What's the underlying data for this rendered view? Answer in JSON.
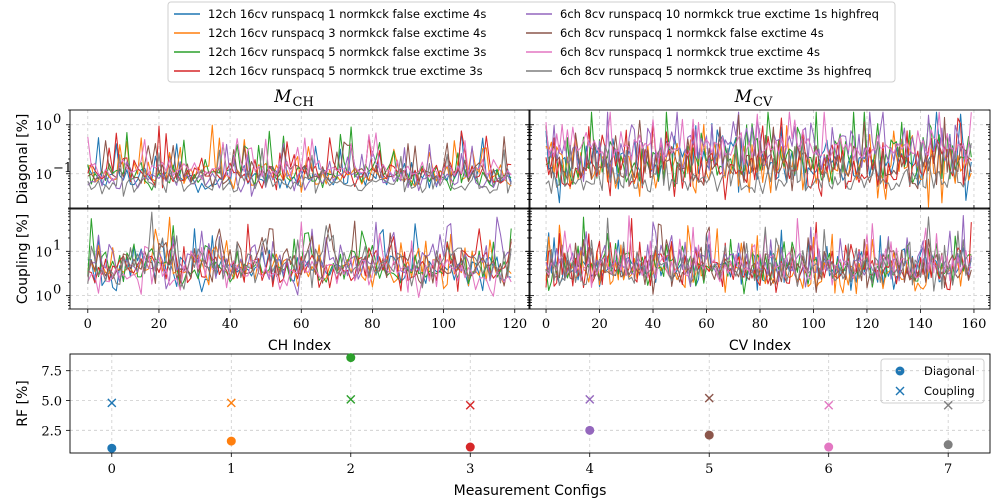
{
  "legend": {
    "entries": [
      {
        "label": "12ch 16cv runspacq 1 normkck false exctime 4s",
        "color": "#1f77b4"
      },
      {
        "label": "12ch 16cv runspacq 3 normkck false exctime 4s",
        "color": "#ff7f0e"
      },
      {
        "label": "12ch 16cv runspacq 5 normkck false exctime 3s",
        "color": "#2ca02c"
      },
      {
        "label": "12ch 16cv runspacq 5 normkck true exctime 3s",
        "color": "#d62728"
      },
      {
        "label": "6ch 8cv runspacq 10 normkck true exctime 1s highfreq",
        "color": "#9467bd"
      },
      {
        "label": "6ch 8cv runspacq 1 normkck false exctime 4s",
        "color": "#8c564b"
      },
      {
        "label": "6ch 8cv runspacq 1 normkck true exctime 4s",
        "color": "#e377c2"
      },
      {
        "label": "6ch 8cv runspacq 5 normkck true exctime 3s highfreq",
        "color": "#7f7f7f"
      }
    ]
  },
  "chart_data": [
    {
      "id": "mch",
      "type": "line",
      "title_main": "M",
      "title_sub": "CH",
      "xlabel": "CH Index",
      "x_ticks": [
        0,
        20,
        40,
        60,
        80,
        100,
        120
      ],
      "x_range": [
        0,
        119
      ],
      "xlim": [
        -5,
        124
      ],
      "panels": [
        {
          "ylabel": "Diagonal [%]",
          "yscale": "log",
          "ylim": [
            0.02,
            2.0
          ],
          "y_ticks": [
            {
              "v": 0.1,
              "t": "10",
              "e": "−1"
            },
            {
              "v": 1,
              "t": "10",
              "e": "0"
            }
          ],
          "series_levels": [
            0.08,
            0.1,
            0.1,
            0.1,
            0.08,
            0.1,
            0.12,
            0.06
          ],
          "series_spread": [
            0.6,
            0.6,
            0.6,
            0.6,
            0.5,
            0.5,
            0.4,
            0.5
          ]
        },
        {
          "ylabel": "Coupling [%]",
          "yscale": "log",
          "ylim": [
            0.5,
            90
          ],
          "y_ticks": [
            {
              "v": 1,
              "t": "10",
              "e": "0"
            },
            {
              "v": 10,
              "t": "10",
              "e": "1"
            }
          ],
          "series_levels": [
            4,
            4,
            4.5,
            4,
            5,
            5,
            3,
            5
          ],
          "series_spread": [
            0.9,
            0.9,
            0.9,
            0.9,
            1.0,
            1.0,
            1.0,
            1.1
          ]
        }
      ]
    },
    {
      "id": "mcv",
      "type": "line",
      "title_main": "M",
      "title_sub": "CV",
      "xlabel": "CV Index",
      "x_ticks": [
        0,
        20,
        40,
        60,
        80,
        100,
        120,
        140,
        160
      ],
      "x_range": [
        0,
        159
      ],
      "xlim": [
        -6,
        166
      ],
      "panels": [
        {
          "ylabel": "",
          "yscale": "log",
          "ylim": [
            0.02,
            2.0
          ],
          "y_ticks": [],
          "series_levels": [
            0.15,
            0.12,
            0.2,
            0.15,
            0.3,
            0.15,
            0.35,
            0.07
          ],
          "series_spread": [
            1.1,
            1.1,
            1.1,
            1.1,
            1.0,
            1.0,
            0.7,
            0.5
          ]
        },
        {
          "ylabel": "",
          "yscale": "log",
          "ylim": [
            0.5,
            90
          ],
          "y_ticks": [],
          "series_levels": [
            4,
            3.5,
            4.5,
            4,
            5,
            4,
            5,
            4
          ],
          "series_spread": [
            0.9,
            0.9,
            0.9,
            0.9,
            0.9,
            0.9,
            0.9,
            0.9
          ]
        }
      ]
    },
    {
      "id": "rf",
      "type": "scatter",
      "xlabel": "Measurement Configs",
      "ylabel": "RF [%]",
      "x_ticks": [
        0,
        1,
        2,
        3,
        4,
        5,
        6,
        7
      ],
      "xlim": [
        -0.35,
        7.35
      ],
      "ylim": [
        0.6,
        8.9
      ],
      "y_ticks": [
        2.5,
        5.0,
        7.5
      ],
      "y_tick_labels": [
        "2.5",
        "5.0",
        "7.5"
      ],
      "legend": [
        {
          "label": "Diagonal",
          "marker": "circle"
        },
        {
          "label": "Coupling",
          "marker": "x"
        }
      ],
      "series": [
        {
          "name": "Diagonal",
          "marker": "circle",
          "x": [
            0,
            1,
            2,
            3,
            4,
            5,
            6,
            7
          ],
          "values": [
            1.0,
            1.6,
            8.6,
            1.1,
            2.5,
            2.1,
            1.1,
            1.3
          ]
        },
        {
          "name": "Coupling",
          "marker": "x",
          "x": [
            0,
            1,
            2,
            3,
            4,
            5,
            6,
            7
          ],
          "values": [
            4.8,
            4.8,
            5.1,
            4.6,
            5.1,
            5.2,
            4.6,
            4.6
          ]
        }
      ]
    }
  ]
}
